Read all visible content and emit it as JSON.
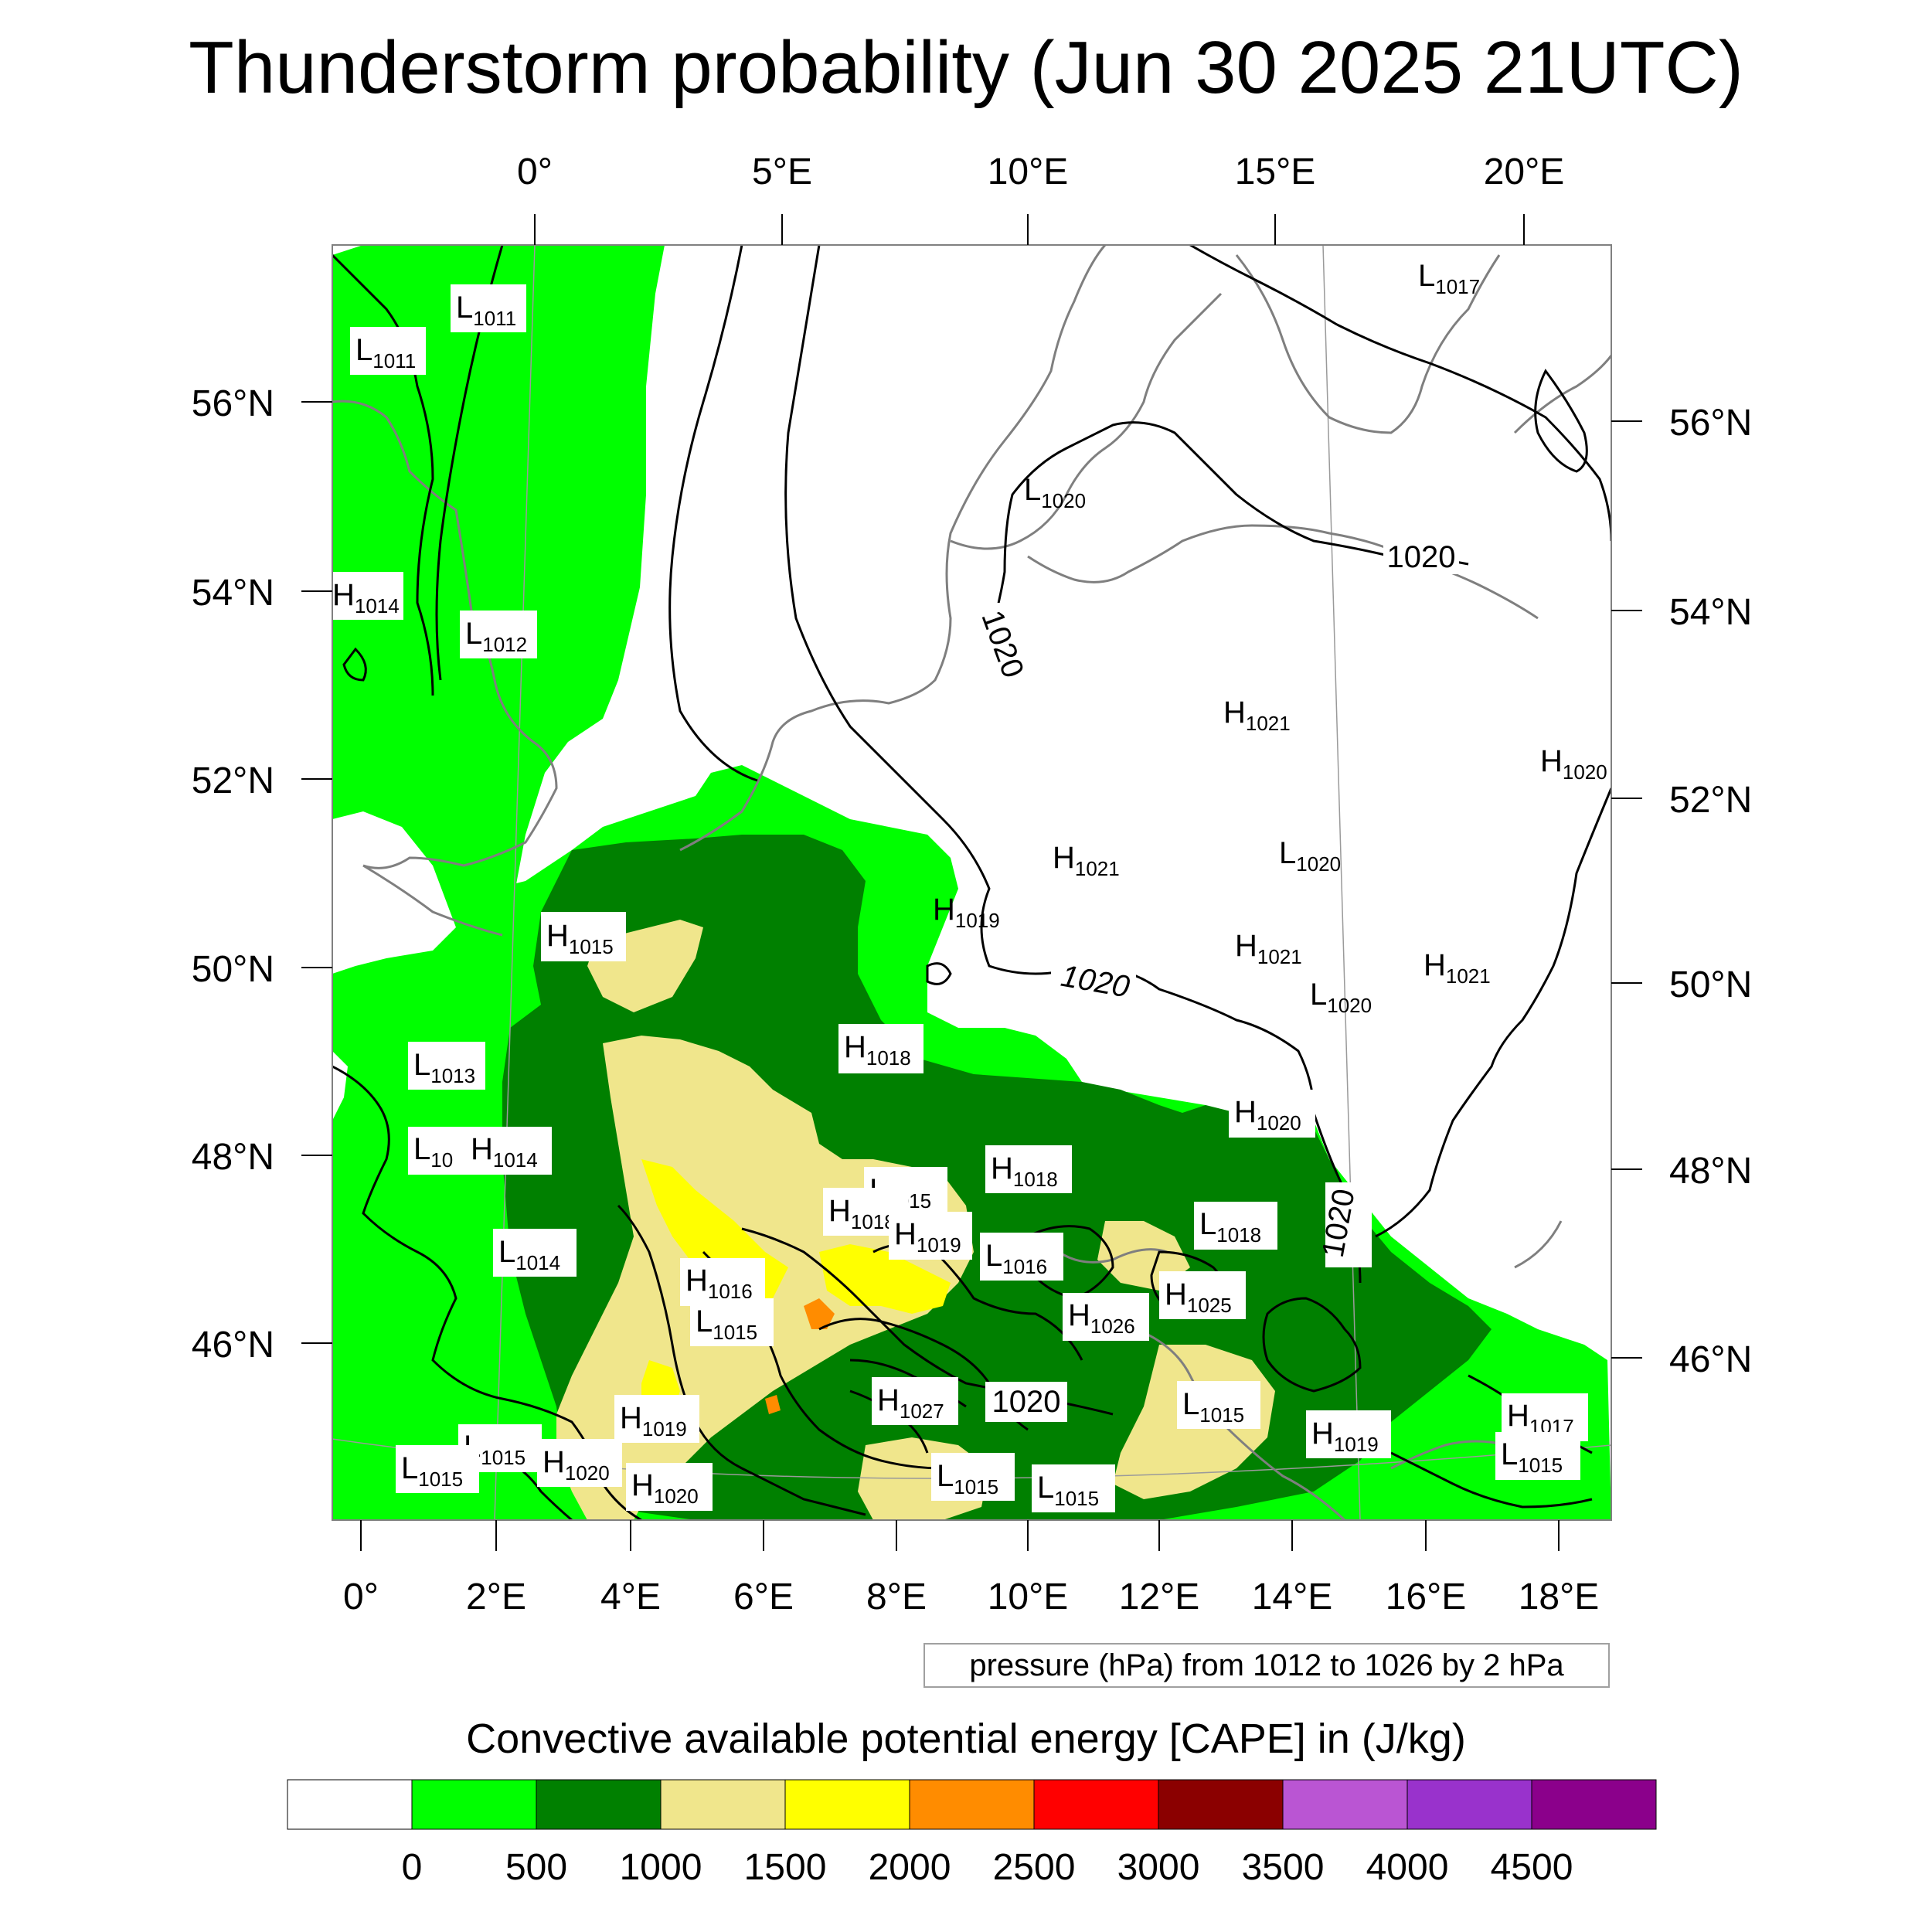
{
  "title": "Thunderstorm probability (Jun 30 2025 21UTC)",
  "top_axis": {
    "labels": [
      "0°",
      "5°E",
      "10°E",
      "15°E",
      "20°E"
    ]
  },
  "bottom_axis": {
    "labels": [
      "0°",
      "2°E",
      "4°E",
      "6°E",
      "8°E",
      "10°E",
      "12°E",
      "14°E",
      "16°E",
      "18°E"
    ]
  },
  "left_axis": {
    "labels": [
      "56°N",
      "54°N",
      "52°N",
      "50°N",
      "48°N",
      "46°N"
    ]
  },
  "right_axis": {
    "labels": [
      "56°N",
      "54°N",
      "52°N",
      "50°N",
      "48°N",
      "46°N"
    ]
  },
  "pressure_note": "pressure (hPa) from 1012 to 1026 by 2 hPa",
  "colorbar": {
    "title": "Convective available potential energy [CAPE] in (J/kg)",
    "colors": [
      "#ffffff",
      "#00ff00",
      "#008000",
      "#f0e68c",
      "#ffff00",
      "#ff8c00",
      "#ff0000",
      "#8b0000",
      "#ba55d3",
      "#9932cc",
      "#8b008b"
    ],
    "tick_labels": [
      "0",
      "500",
      "1000",
      "1500",
      "2000",
      "2500",
      "3000",
      "3500",
      "4000",
      "4500"
    ]
  },
  "isobar_labels": [
    "1020",
    "1020",
    "1020",
    "1020",
    "1020"
  ],
  "pressure_centers": [
    {
      "type": "L",
      "value": "1011"
    },
    {
      "type": "L",
      "value": "1011"
    },
    {
      "type": "L",
      "value": "1017"
    },
    {
      "type": "L",
      "value": "1020"
    },
    {
      "type": "H",
      "value": "1014"
    },
    {
      "type": "L",
      "value": "1012"
    },
    {
      "type": "H",
      "value": "1021"
    },
    {
      "type": "H",
      "value": "1020"
    },
    {
      "type": "H",
      "value": "1021"
    },
    {
      "type": "L",
      "value": "1020"
    },
    {
      "type": "H",
      "value": "1019"
    },
    {
      "type": "H",
      "value": "1015"
    },
    {
      "type": "H",
      "value": "1021"
    },
    {
      "type": "L",
      "value": "1020"
    },
    {
      "type": "H",
      "value": "1021"
    },
    {
      "type": "H",
      "value": "1018"
    },
    {
      "type": "L",
      "value": "1013"
    },
    {
      "type": "H",
      "value": "1020"
    },
    {
      "type": "L",
      "value": "10"
    },
    {
      "type": "H",
      "value": "1014"
    },
    {
      "type": "H",
      "value": "1018"
    },
    {
      "type": "L",
      "value": "1015"
    },
    {
      "type": "H",
      "value": "1018"
    },
    {
      "type": "H",
      "value": "1019"
    },
    {
      "type": "L",
      "value": "1018"
    },
    {
      "type": "L",
      "value": "1014"
    },
    {
      "type": "L",
      "value": "1016"
    },
    {
      "type": "H",
      "value": "1016"
    },
    {
      "type": "H",
      "value": "1025"
    },
    {
      "type": "L",
      "value": "1015"
    },
    {
      "type": "H",
      "value": "1026"
    },
    {
      "type": "H",
      "value": "1027"
    },
    {
      "type": "L",
      "value": "1015"
    },
    {
      "type": "H",
      "value": "1017"
    },
    {
      "type": "H",
      "value": "1019"
    },
    {
      "type": "H",
      "value": "1019"
    },
    {
      "type": "L",
      "value": "1015"
    },
    {
      "type": "L",
      "value": "1015"
    },
    {
      "type": "H",
      "value": "1020"
    },
    {
      "type": "L",
      "value": "1015"
    },
    {
      "type": "H",
      "value": "1020"
    },
    {
      "type": "L",
      "value": "1015"
    },
    {
      "type": "L",
      "value": "1015"
    }
  ]
}
